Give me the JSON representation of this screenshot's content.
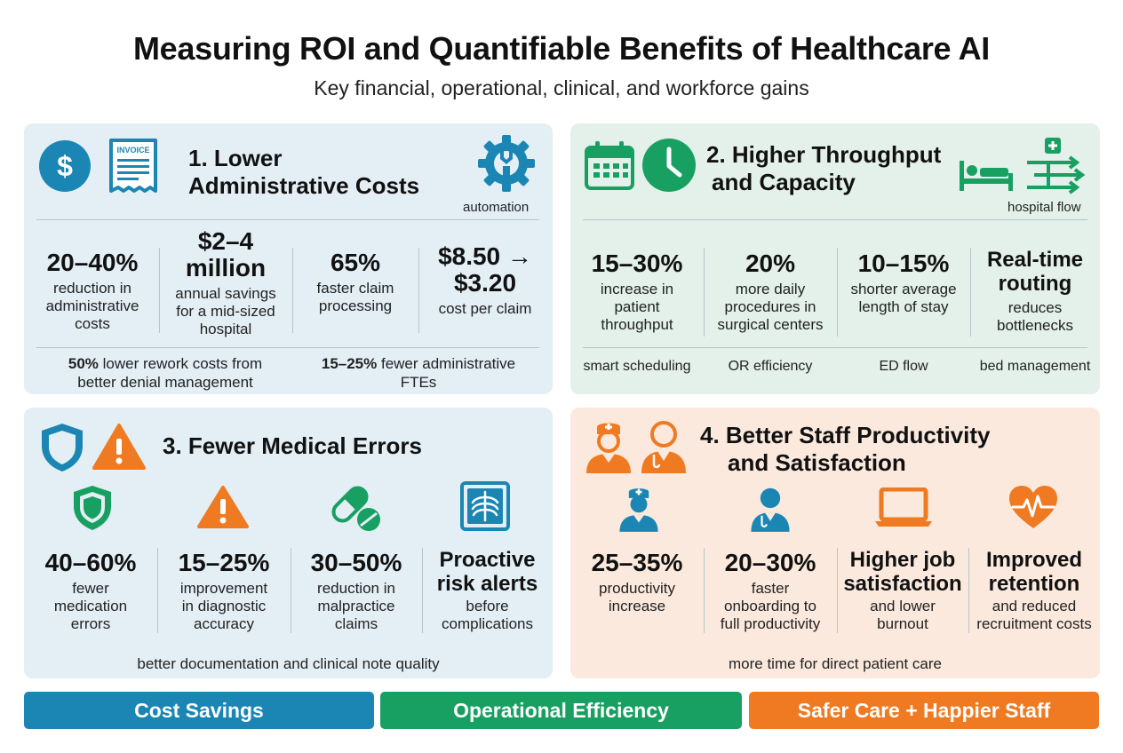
{
  "header": {
    "title": "Measuring ROI and Quantifiable Benefits of Healthcare AI",
    "subtitle": "Key financial, operational, clinical, and workforce gains"
  },
  "colors": {
    "blue": "#1b86b3",
    "green": "#18a062",
    "orange": "#ef7a22"
  },
  "panels": [
    {
      "title_line1": "1. Lower",
      "title_line2": "Administrative Costs",
      "header_icons": [
        "dollar-icon",
        "invoice-icon",
        "gear-wrench-icon"
      ],
      "invoice_text": "INVOICE",
      "header_label": "automation",
      "stats": [
        {
          "value": "20–40%",
          "desc": [
            "reduction in",
            "administrative",
            "costs"
          ]
        },
        {
          "value": [
            "$2–4",
            "million"
          ],
          "desc": [
            "annual savings",
            "for a mid-sized",
            "hospital"
          ]
        },
        {
          "value": "65%",
          "desc": [
            "faster claim",
            "processing"
          ]
        },
        {
          "value": [
            "$8.50 →",
            "$3.20"
          ],
          "desc": [
            "cost per claim"
          ]
        }
      ],
      "footer": [
        {
          "bold": "50%",
          "text": " lower rework costs from",
          "line2": "better denial management"
        },
        {
          "bold": "15–25%",
          "text": " fewer administrative",
          "line2": "FTEs"
        }
      ]
    },
    {
      "title_line1": "2. Higher Throughput",
      "title_line2": "and Capacity",
      "header_icons": [
        "calendar-icon",
        "clock-icon",
        "hospital-bed-icon",
        "patient-flow-icon"
      ],
      "header_label": "hospital flow",
      "stats": [
        {
          "value": "15–30%",
          "desc": [
            "increase in",
            "patient",
            "throughput"
          ]
        },
        {
          "value": "20%",
          "desc": [
            "more daily",
            "procedures in",
            "surgical centers"
          ]
        },
        {
          "value": "10–15%",
          "desc": [
            "shorter average",
            "length of stay"
          ]
        },
        {
          "value": [
            "Real-time",
            "routing"
          ],
          "desc": [
            "reduces",
            "bottlenecks"
          ]
        }
      ],
      "tags": [
        "smart scheduling",
        "OR efficiency",
        "ED flow",
        "bed management"
      ]
    },
    {
      "title": "3. Fewer Medical Errors",
      "header_icons": [
        "shield-icon",
        "warning-icon"
      ],
      "stat_icons": [
        "shield-icon",
        "warning-icon",
        "pills-icon",
        "xray-icon"
      ],
      "stats": [
        {
          "value": "40–60%",
          "desc": [
            "fewer",
            "medication",
            "errors"
          ]
        },
        {
          "value": "15–25%",
          "desc": [
            "improvement",
            "in diagnostic",
            "accuracy"
          ]
        },
        {
          "value": "30–50%",
          "desc": [
            "reduction in",
            "malpractice",
            "claims"
          ]
        },
        {
          "value": [
            "Proactive",
            "risk alerts"
          ],
          "desc": [
            "before",
            "complications"
          ]
        }
      ],
      "footer": "better documentation and clinical note quality"
    },
    {
      "title_line1": "4. Better Staff Productivity",
      "title_line2": "and Satisfaction",
      "header_icons": [
        "nurse-icon",
        "doctor-icon"
      ],
      "stat_icons": [
        "nurse-icon",
        "doctor-icon",
        "laptop-icon",
        "heart-pulse-icon"
      ],
      "stats": [
        {
          "value": "25–35%",
          "desc": [
            "productivity",
            "increase"
          ]
        },
        {
          "value": "20–30%",
          "desc": [
            "faster",
            "onboarding to",
            "full productivity"
          ]
        },
        {
          "value": [
            "Higher job",
            "satisfaction"
          ],
          "desc": [
            "and lower",
            "burnout"
          ]
        },
        {
          "value": [
            "Improved",
            "retention"
          ],
          "desc": [
            "and reduced",
            "recruitment costs"
          ]
        }
      ],
      "footer": "more time for direct patient care"
    }
  ],
  "bands": [
    "Cost Savings",
    "Operational Efficiency",
    "Safer Care + Happier Staff"
  ]
}
